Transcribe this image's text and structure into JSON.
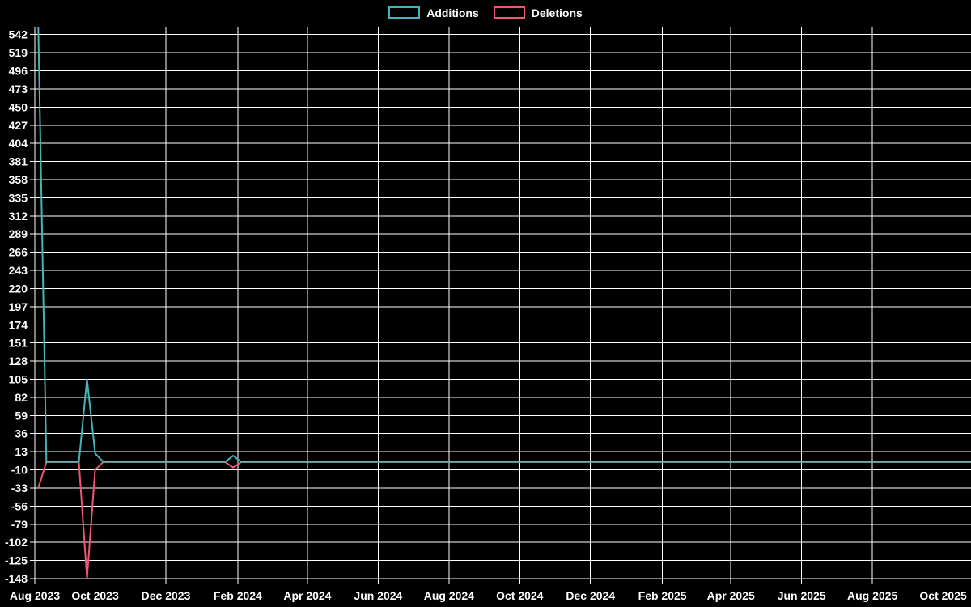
{
  "page": {
    "background": "#000000",
    "text_color": "#ffffff"
  },
  "legend": {
    "items": [
      {
        "label": "Additions",
        "color": "#45b4ba"
      },
      {
        "label": "Deletions",
        "color": "#ec5872"
      }
    ]
  },
  "chart_data": {
    "type": "line",
    "title": "",
    "grid": true,
    "grid_color": "#ffffff",
    "text_color": "#ffffff",
    "background_color": "#000000",
    "overlap_color": "#97a8a8",
    "legend_position": "top-center",
    "ylim": [
      -148,
      552
    ],
    "y_axis": {
      "tick_max": 542,
      "tick_min": -148,
      "tick_step": 23,
      "tick_labels": [
        542,
        519,
        496,
        473,
        450,
        427,
        404,
        381,
        358,
        335,
        312,
        289,
        266,
        243,
        220,
        197,
        174,
        151,
        128,
        105,
        82,
        59,
        36,
        13,
        -10,
        -33,
        -56,
        -79,
        -102,
        -125,
        -148
      ]
    },
    "x_axis": {
      "start_date": "2023-08-10",
      "end_date": "2025-10-25",
      "ticks": [
        {
          "label": "Aug 2023",
          "date": "2023-08-10"
        },
        {
          "label": "Oct 2023",
          "date": "2023-10-01"
        },
        {
          "label": "Dec 2023",
          "date": "2023-12-01"
        },
        {
          "label": "Feb 2024",
          "date": "2024-02-01"
        },
        {
          "label": "Apr 2024",
          "date": "2024-04-01"
        },
        {
          "label": "Jun 2024",
          "date": "2024-06-01"
        },
        {
          "label": "Aug 2024",
          "date": "2024-08-01"
        },
        {
          "label": "Oct 2024",
          "date": "2024-10-01"
        },
        {
          "label": "Dec 2024",
          "date": "2024-12-01"
        },
        {
          "label": "Feb 2025",
          "date": "2025-02-01"
        },
        {
          "label": "Apr 2025",
          "date": "2025-04-01"
        },
        {
          "label": "Jun 2025",
          "date": "2025-06-01"
        },
        {
          "label": "Aug 2025",
          "date": "2025-08-01"
        },
        {
          "label": "Oct 2025",
          "date": "2025-10-01"
        }
      ]
    },
    "dates": [
      "2023-08-13",
      "2023-08-20",
      "2023-09-17",
      "2023-09-24",
      "2023-10-01",
      "2023-10-08",
      "2024-01-21",
      "2024-01-28",
      "2024-02-04",
      "2025-10-25"
    ],
    "series": [
      {
        "name": "Additions",
        "color": "#45b4ba",
        "values": [
          552,
          0,
          0,
          105,
          11,
          0,
          0,
          8,
          0,
          0
        ]
      },
      {
        "name": "Deletions",
        "color": "#ec5872",
        "values": [
          -33,
          0,
          0,
          -148,
          -10,
          0,
          0,
          -7,
          0,
          0
        ]
      }
    ]
  }
}
